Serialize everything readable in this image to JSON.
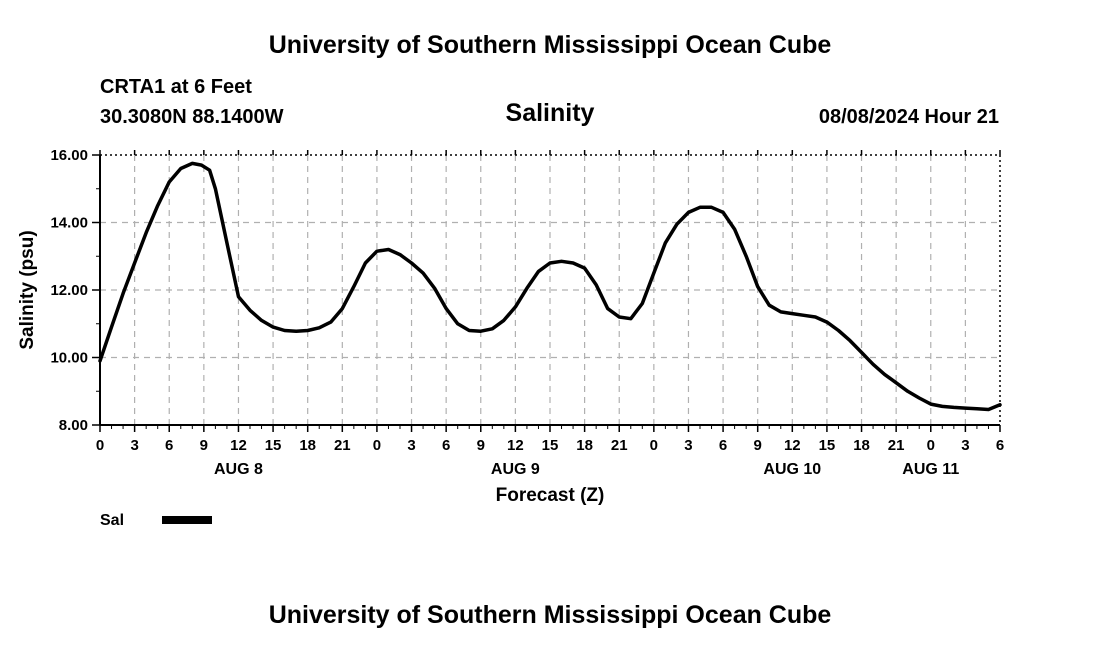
{
  "page": {
    "header_title": "University of Southern Mississippi Ocean Cube",
    "footer_title": "University of Southern Mississippi Ocean Cube"
  },
  "station": {
    "name": "CRTA1 at 6 Feet",
    "coords": "30.3080N  88.1400W",
    "timestamp": "08/08/2024 Hour 21"
  },
  "chart_data": {
    "type": "line",
    "title": "Salinity",
    "xlabel": "Forecast (Z)",
    "ylabel": "Salinity (psu)",
    "ylim": [
      8,
      16
    ],
    "yticks": [
      "8.00",
      "10.00",
      "12.00",
      "14.00",
      "16.00"
    ],
    "x_hour_ticks": [
      "0",
      "3",
      "6",
      "9",
      "12",
      "15",
      "18",
      "21",
      "0",
      "3",
      "6",
      "9",
      "12",
      "15",
      "18",
      "21",
      "0",
      "3",
      "6",
      "9",
      "12",
      "15",
      "18",
      "21",
      "0",
      "3",
      "6"
    ],
    "x_day_labels": [
      {
        "label": "AUG 8",
        "hour": 12
      },
      {
        "label": "AUG 9",
        "hour": 36
      },
      {
        "label": "AUG 10",
        "hour": 60
      },
      {
        "label": "AUG 11",
        "hour": 72
      }
    ],
    "xlim_hours": [
      0,
      78
    ],
    "grid": true,
    "legend": {
      "position": "bottom-left",
      "entries": [
        {
          "label": "Sal",
          "color": "#000000"
        }
      ]
    },
    "series": [
      {
        "name": "Sal",
        "color": "#000000",
        "x": [
          0,
          1,
          2,
          3,
          4,
          5,
          6,
          7,
          8,
          8.8,
          9.5,
          10,
          11,
          12,
          13,
          14,
          15,
          16,
          17,
          18,
          19,
          20,
          21,
          22,
          23,
          24,
          25,
          26,
          27,
          28,
          29,
          30,
          31,
          32,
          33,
          34,
          35,
          36,
          37,
          38,
          39,
          40,
          41,
          42,
          43,
          44,
          45,
          46,
          47,
          48,
          49,
          50,
          51,
          52,
          53,
          54,
          55,
          56,
          57,
          58,
          59,
          60,
          61,
          62,
          63,
          64,
          65,
          66,
          67,
          68,
          69,
          70,
          71,
          72,
          73,
          74,
          75,
          76,
          77,
          78
        ],
        "values": [
          9.9,
          10.9,
          11.9,
          12.8,
          13.7,
          14.5,
          15.2,
          15.6,
          15.75,
          15.7,
          15.55,
          15.0,
          13.4,
          11.8,
          11.4,
          11.1,
          10.9,
          10.8,
          10.78,
          10.8,
          10.88,
          11.05,
          11.45,
          12.1,
          12.8,
          13.15,
          13.2,
          13.05,
          12.8,
          12.5,
          12.05,
          11.45,
          11.0,
          10.8,
          10.78,
          10.85,
          11.1,
          11.5,
          12.05,
          12.55,
          12.8,
          12.85,
          12.8,
          12.65,
          12.15,
          11.45,
          11.2,
          11.15,
          11.6,
          12.5,
          13.4,
          13.95,
          14.3,
          14.45,
          14.45,
          14.3,
          13.8,
          13.0,
          12.1,
          11.55,
          11.35,
          11.3,
          11.25,
          11.2,
          11.05,
          10.8,
          10.5,
          10.15,
          9.8,
          9.5,
          9.25,
          9.0,
          8.8,
          8.62,
          8.55,
          8.52,
          8.5,
          8.48,
          8.46,
          8.6
        ]
      }
    ]
  }
}
